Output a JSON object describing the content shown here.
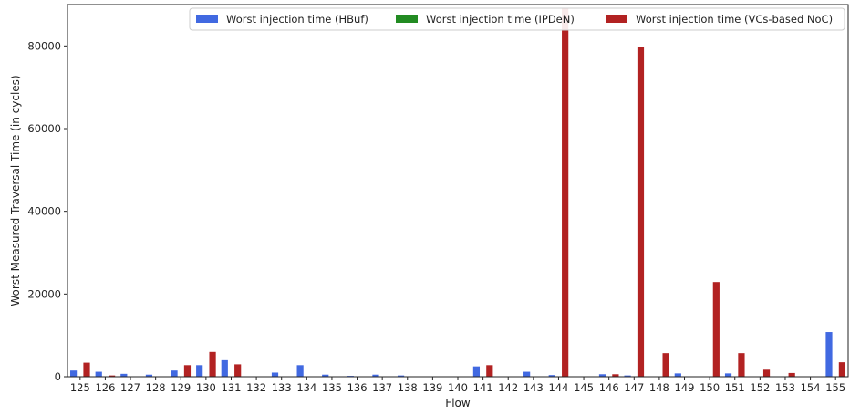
{
  "chart_data": {
    "type": "bar",
    "xlabel": "Flow",
    "ylabel": "Worst Measured Traversal Time (in cycles)",
    "ylim": [
      0,
      90000
    ],
    "yticks": [
      0,
      20000,
      40000,
      60000,
      80000
    ],
    "grid": false,
    "legend_position": "top-right",
    "categories": [
      "125",
      "126",
      "127",
      "128",
      "129",
      "130",
      "131",
      "132",
      "133",
      "134",
      "135",
      "136",
      "137",
      "138",
      "139",
      "140",
      "141",
      "142",
      "143",
      "144",
      "145",
      "146",
      "147",
      "148",
      "149",
      "150",
      "151",
      "152",
      "153",
      "154",
      "155"
    ],
    "series": [
      {
        "name": "Worst injection time (HBuf)",
        "color": "#4169e1",
        "values": [
          1500,
          1200,
          700,
          500,
          1500,
          2800,
          4000,
          0,
          1000,
          2800,
          500,
          200,
          500,
          300,
          0,
          0,
          2500,
          0,
          1200,
          400,
          0,
          600,
          300,
          0,
          800,
          0,
          800,
          0,
          0,
          0,
          10800
        ]
      },
      {
        "name": "Worst injection time (IPDeN)",
        "color": "#228b22",
        "values": [
          0,
          0,
          0,
          0,
          0,
          0,
          0,
          0,
          0,
          0,
          0,
          0,
          0,
          0,
          0,
          0,
          0,
          0,
          0,
          0,
          0,
          0,
          0,
          0,
          0,
          0,
          0,
          0,
          0,
          0,
          0
        ]
      },
      {
        "name": "Worst injection time (VCs-based NoC)",
        "color": "#b22222",
        "values": [
          3400,
          300,
          0,
          0,
          2800,
          6000,
          3000,
          0,
          0,
          0,
          0,
          0,
          0,
          0,
          0,
          0,
          2800,
          0,
          0,
          89000,
          0,
          600,
          79700,
          5700,
          0,
          22900,
          5700,
          1700,
          900,
          0,
          3500
        ]
      }
    ]
  }
}
